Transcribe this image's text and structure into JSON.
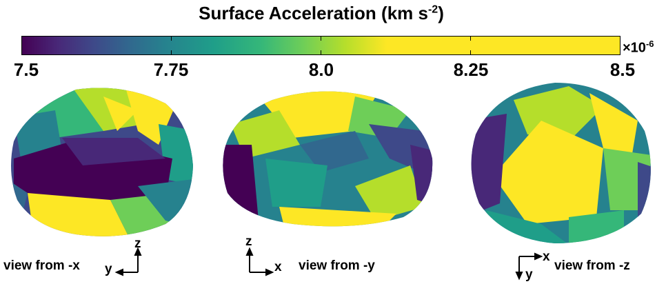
{
  "title": "Surface Acceleration (km s",
  "title_exp": "-2",
  "title_close": ")",
  "colorbar": {
    "ticks": [
      "7.5",
      "7.75",
      "8.0",
      "8.25",
      "8.5"
    ],
    "multiplier": "×10",
    "multiplier_exp": "-6",
    "colormap": "viridis"
  },
  "views": [
    {
      "label": "view from -x",
      "axis_h": "y",
      "axis_v": "z"
    },
    {
      "label": "view from -y",
      "axis_h": "x",
      "axis_v": "z"
    },
    {
      "label": "view from -z",
      "axis_h": "x",
      "axis_v": "y"
    }
  ],
  "colors": {
    "dark": "#440154",
    "blue": "#3e4989",
    "teal": "#26828e",
    "green": "#35b779",
    "lime": "#b5de2b",
    "yellow": "#fde725"
  }
}
